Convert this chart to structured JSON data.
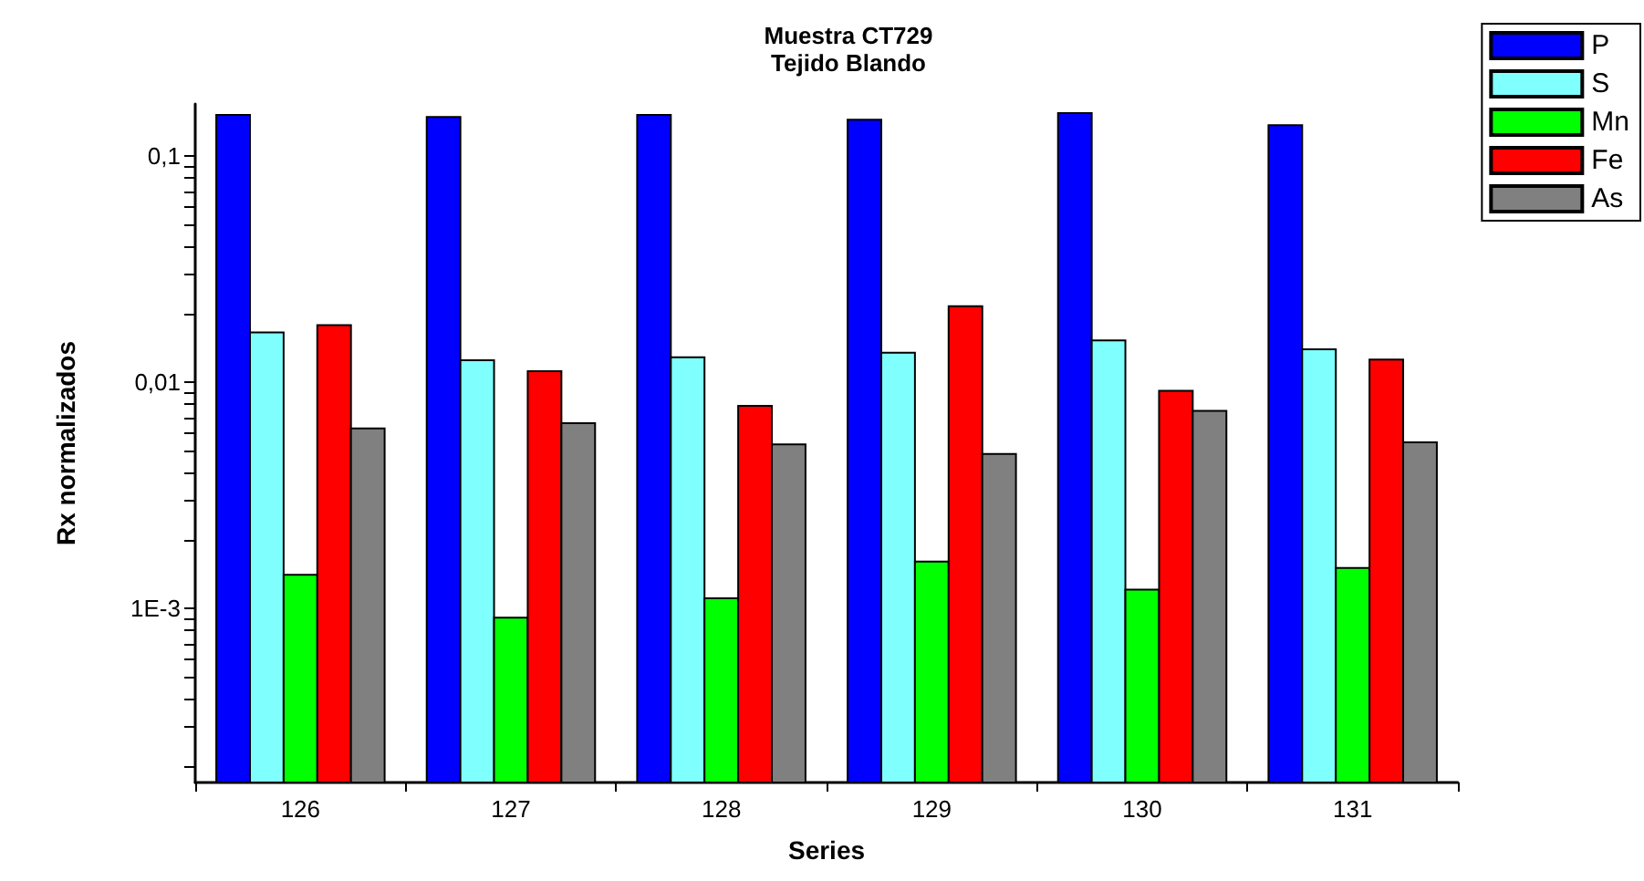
{
  "chart_data": {
    "type": "bar",
    "title": "Muestra CT729",
    "subtitle": "Tejido Blando",
    "xlabel": "Series",
    "ylabel": "Rx normalizados",
    "categories": [
      "126",
      "127",
      "128",
      "129",
      "130",
      "131"
    ],
    "series": [
      {
        "name": "P",
        "color": "#0000ff",
        "values": [
          0.152,
          0.149,
          0.152,
          0.145,
          0.155,
          0.137
        ]
      },
      {
        "name": "S",
        "color": "#80ffff",
        "values": [
          0.0166,
          0.0125,
          0.0129,
          0.0135,
          0.0153,
          0.014
        ]
      },
      {
        "name": "Mn",
        "color": "#00ff00",
        "values": [
          0.00141,
          0.00091,
          0.00111,
          0.00161,
          0.00121,
          0.00151
        ]
      },
      {
        "name": "Fe",
        "color": "#ff0000",
        "values": [
          0.0179,
          0.0112,
          0.00786,
          0.0217,
          0.00916,
          0.0126
        ]
      },
      {
        "name": "As",
        "color": "#808080",
        "values": [
          0.00625,
          0.0066,
          0.00532,
          0.00482,
          0.00748,
          0.00542
        ]
      }
    ],
    "log": "y",
    "ylim": [
      0.00017,
      0.17
    ],
    "yticks": [
      {
        "value": 0.0002,
        "label": null
      },
      {
        "value": 0.0003,
        "label": null
      },
      {
        "value": 0.0004,
        "label": null
      },
      {
        "value": 0.0005,
        "label": null
      },
      {
        "value": 0.0006,
        "label": null
      },
      {
        "value": 0.0007,
        "label": null
      },
      {
        "value": 0.0008,
        "label": null
      },
      {
        "value": 0.0009,
        "label": null
      },
      {
        "value": 0.001,
        "label": "1E-3"
      },
      {
        "value": 0.002,
        "label": null
      },
      {
        "value": 0.003,
        "label": null
      },
      {
        "value": 0.004,
        "label": null
      },
      {
        "value": 0.005,
        "label": null
      },
      {
        "value": 0.006,
        "label": null
      },
      {
        "value": 0.007,
        "label": null
      },
      {
        "value": 0.008,
        "label": null
      },
      {
        "value": 0.009,
        "label": null
      },
      {
        "value": 0.01,
        "label": "0,01"
      },
      {
        "value": 0.02,
        "label": null
      },
      {
        "value": 0.03,
        "label": null
      },
      {
        "value": 0.04,
        "label": null
      },
      {
        "value": 0.05,
        "label": null
      },
      {
        "value": 0.06,
        "label": null
      },
      {
        "value": 0.07,
        "label": null
      },
      {
        "value": 0.08,
        "label": null
      },
      {
        "value": 0.09,
        "label": null
      },
      {
        "value": 0.1,
        "label": "0,1"
      }
    ],
    "grid": false,
    "legend": "top right"
  }
}
